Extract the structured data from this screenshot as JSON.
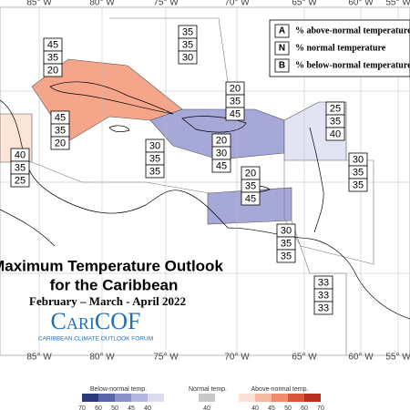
{
  "header": {
    "title": "Maximum Temperature Outlook",
    "title_line2": "for the Caribbean",
    "period": "February – March - April 2022",
    "logo": "CariCOF",
    "logo_subtitle": "CARIBBEAN CLIMATE OUTLOOK FORUM"
  },
  "longitudes": [
    "85° W",
    "80° W",
    "75° W",
    "70° W",
    "65° W",
    "60° W",
    "55° W"
  ],
  "key": [
    {
      "letter": "A",
      "text": "% above-normal temperature"
    },
    {
      "letter": "N",
      "text": "% normal temperature"
    },
    {
      "letter": "B",
      "text": "% below-normal temperature"
    }
  ],
  "regions": [
    {
      "values": [
        45,
        35,
        20
      ]
    },
    {
      "values": [
        35,
        35,
        30
      ]
    },
    {
      "values": [
        45,
        35,
        20
      ]
    },
    {
      "values": [
        40,
        35,
        25
      ]
    },
    {
      "values": [
        20,
        35,
        45
      ]
    },
    {
      "values": [
        25,
        35,
        40
      ]
    },
    {
      "values": [
        30,
        35,
        35
      ]
    },
    {
      "values": [
        20,
        30,
        45
      ]
    },
    {
      "values": [
        30,
        35,
        35
      ]
    },
    {
      "values": [
        20,
        35,
        45
      ]
    },
    {
      "values": [
        30,
        35,
        35
      ]
    },
    {
      "values": [
        33,
        33,
        33
      ]
    }
  ],
  "colorbar": {
    "below": {
      "label": "Below-normal temp.",
      "colors": [
        "#2b3a7a",
        "#5a64a8",
        "#8b90c8",
        "#b5b8de",
        "#dcdcef"
      ],
      "ticks": [
        70,
        60,
        50,
        45,
        40
      ]
    },
    "normal": {
      "label": "Normal temp.",
      "colors": [
        "#c8c8c8"
      ],
      "ticks": [
        40
      ]
    },
    "above": {
      "label": "Above-normal temp.",
      "colors": [
        "#fbe1d6",
        "#f6b9a2",
        "#ee8c6c",
        "#d9583a",
        "#b5301d"
      ],
      "ticks": [
        40,
        45,
        50,
        60,
        70
      ]
    }
  }
}
